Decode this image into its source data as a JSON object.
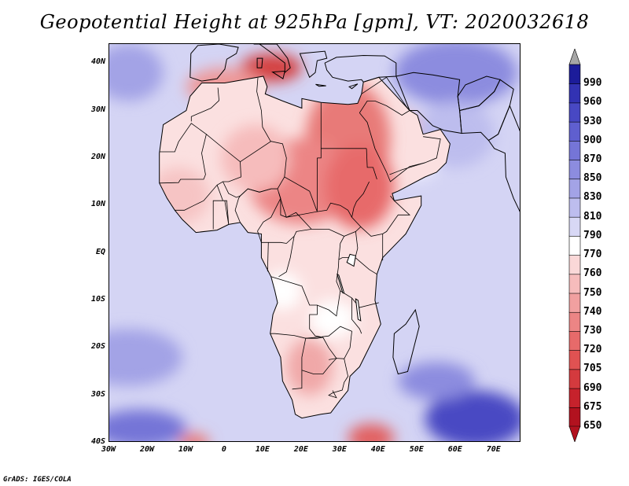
{
  "title": "Geopotential Height at 925hPa [gpm], VT: 2020032618",
  "credit": "GrADS: IGES/COLA",
  "map": {
    "region": "Africa",
    "lon_range": [
      -30,
      77
    ],
    "lat_range": [
      -40,
      44
    ],
    "lat_ticks": [
      {
        "value": 40,
        "label": "40N"
      },
      {
        "value": 30,
        "label": "30N"
      },
      {
        "value": 20,
        "label": "20N"
      },
      {
        "value": 10,
        "label": "10N"
      },
      {
        "value": 0,
        "label": "EQ"
      },
      {
        "value": -10,
        "label": "10S"
      },
      {
        "value": -20,
        "label": "20S"
      },
      {
        "value": -30,
        "label": "30S"
      },
      {
        "value": -40,
        "label": "40S"
      }
    ],
    "lon_ticks": [
      {
        "value": -30,
        "label": "30W"
      },
      {
        "value": -20,
        "label": "20W"
      },
      {
        "value": -10,
        "label": "10W"
      },
      {
        "value": 0,
        "label": "0"
      },
      {
        "value": 10,
        "label": "10E"
      },
      {
        "value": 20,
        "label": "20E"
      },
      {
        "value": 30,
        "label": "30E"
      },
      {
        "value": 40,
        "label": "40E"
      },
      {
        "value": 50,
        "label": "50E"
      },
      {
        "value": 60,
        "label": "60E"
      },
      {
        "value": 70,
        "label": "70E"
      }
    ]
  },
  "colorbar": {
    "levels": [
      "650",
      "675",
      "690",
      "705",
      "720",
      "730",
      "740",
      "750",
      "760",
      "770",
      "790",
      "810",
      "830",
      "850",
      "870",
      "900",
      "930",
      "960",
      "990"
    ],
    "colors": [
      "#b2121f",
      "#c6222c",
      "#d43a3e",
      "#e05252",
      "#e76a6a",
      "#ec8585",
      "#f1a0a0",
      "#f6bcbc",
      "#fad8d8",
      "#ffffff",
      "#d8d8f5",
      "#bdbdee",
      "#a3a3e6",
      "#8c8cdf",
      "#7575d7",
      "#5f5fcf",
      "#4848c3",
      "#3232b3",
      "#1c1c9a"
    ]
  },
  "fields": {
    "ocean_base": "#d4d4f4",
    "land_base": "#fbe0e0",
    "blobs": [
      {
        "lon": 32,
        "lat": 24,
        "rx": 11,
        "ry": 12,
        "color": "#e87a78"
      },
      {
        "lon": 20,
        "lat": 15,
        "rx": 14,
        "ry": 9,
        "color": "#ec8585"
      },
      {
        "lon": 35,
        "lat": 14,
        "rx": 9,
        "ry": 9,
        "color": "#e76a6a"
      },
      {
        "lon": 12,
        "lat": 39,
        "rx": 8,
        "ry": 3,
        "color": "#d44040"
      },
      {
        "lon": 0,
        "lat": 35,
        "rx": 10,
        "ry": 4,
        "color": "#ee9898"
      },
      {
        "lon": 44,
        "lat": 25,
        "rx": 7,
        "ry": 5,
        "color": "#f2aaaa"
      },
      {
        "lon": 8,
        "lat": 20,
        "rx": 9,
        "ry": 7,
        "color": "#f6bcbc"
      },
      {
        "lon": -12,
        "lat": 12,
        "rx": 8,
        "ry": 6,
        "color": "#f6c4c4"
      },
      {
        "lon": 22,
        "lat": -24,
        "rx": 6,
        "ry": 6,
        "color": "#f0a8a8"
      },
      {
        "lon": 38,
        "lat": -39,
        "rx": 6,
        "ry": 3,
        "color": "#e26060"
      },
      {
        "lon": -8,
        "lat": -40,
        "rx": 4,
        "ry": 2,
        "color": "#e87a78"
      },
      {
        "lon": 35,
        "lat": -32,
        "rx": 3,
        "ry": 4,
        "color": "#ffffff"
      },
      {
        "lon": 15,
        "lat": -8,
        "rx": 5,
        "ry": 4,
        "color": "#ffffff"
      },
      {
        "lon": 28,
        "lat": -14,
        "rx": 6,
        "ry": 4,
        "color": "#ffffff"
      },
      {
        "lon": 50,
        "lat": 20,
        "rx": 6,
        "ry": 5,
        "color": "#e8e8fb"
      },
      {
        "lon": 60,
        "lat": 38,
        "rx": 16,
        "ry": 7,
        "color": "#8c8cdf"
      },
      {
        "lon": 60,
        "lat": 25,
        "rx": 10,
        "ry": 7,
        "color": "#bdbdee"
      },
      {
        "lon": -25,
        "lat": 38,
        "rx": 9,
        "ry": 6,
        "color": "#a3a3e6"
      },
      {
        "lon": -25,
        "lat": -22,
        "rx": 14,
        "ry": 6,
        "color": "#a3a3e6"
      },
      {
        "lon": 0,
        "lat": -32,
        "rx": 14,
        "ry": 5,
        "color": "#8c8cdf"
      },
      {
        "lon": 65,
        "lat": -35,
        "rx": 13,
        "ry": 6,
        "color": "#4848c3"
      },
      {
        "lon": 55,
        "lat": -27,
        "rx": 10,
        "ry": 4,
        "color": "#8c8cdf"
      },
      {
        "lon": -22,
        "lat": -37,
        "rx": 12,
        "ry": 4,
        "color": "#7575d7"
      }
    ]
  }
}
